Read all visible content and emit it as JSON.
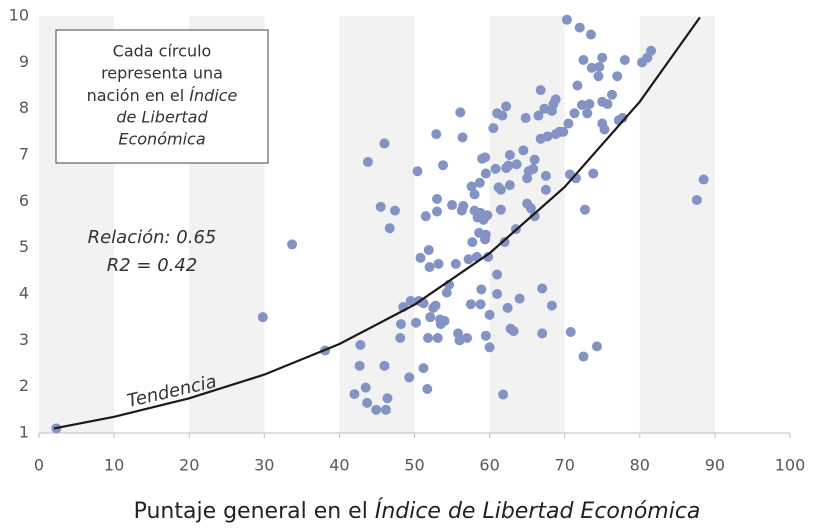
{
  "chart_data": {
    "type": "scatter",
    "xlabel": [
      "Puntaje general en el",
      "Índice de Libertad Económica"
    ],
    "note": [
      "Cada círculo",
      "representa una",
      "nación en el",
      "Índice",
      "de Libertad",
      "Económica"
    ],
    "annotations": [
      "Relación: 0.65",
      "R2 = 0.42"
    ],
    "color": "#8293c4",
    "x": [
      2.3,
      29.8,
      33.7,
      38.1,
      42,
      42.7,
      42.8,
      43.5,
      43.7,
      43.8,
      45.5,
      46,
      44.9,
      46.2,
      46.4,
      46,
      46.7,
      47.4,
      48.1,
      48.2,
      48.5,
      49.3,
      49.5,
      50.2,
      50.4,
      50.6,
      50.8,
      51.2,
      51.2,
      51.5,
      51.7,
      51.8,
      51.9,
      52,
      52.1,
      52.5,
      52.8,
      52.9,
      53,
      53,
      53.1,
      53.2,
      53.4,
      53.5,
      53.8,
      54,
      54.3,
      54.6,
      55,
      55.5,
      55.8,
      56,
      56.1,
      56.3,
      56.4,
      56.5,
      57,
      57.2,
      57.5,
      57.6,
      57.7,
      58,
      58,
      58.3,
      58.4,
      58.6,
      58.7,
      58.8,
      58.8,
      58.9,
      59,
      59.2,
      59.4,
      59.4,
      59.5,
      59.5,
      59.5,
      59.7,
      59.8,
      60,
      60,
      60.5,
      60.8,
      61,
      61,
      61,
      61.2,
      61.5,
      61.5,
      61.7,
      61.8,
      62,
      62.2,
      62.2,
      62.4,
      62.5,
      62.7,
      62.7,
      62.8,
      63.2,
      63.5,
      63.6,
      64,
      64.5,
      64.8,
      65,
      65,
      65.2,
      65.5,
      65.8,
      66,
      66,
      66.5,
      66.8,
      66.8,
      67,
      67,
      67.3,
      67.5,
      67.5,
      67.7,
      68.3,
      68.3,
      68.5,
      68.8,
      68.8,
      69.3,
      69.8,
      70.3,
      70.5,
      70.7,
      70.8,
      71.3,
      71.5,
      71.7,
      72,
      72.3,
      72.5,
      72.5,
      72.7,
      73,
      73.3,
      73.5,
      73.6,
      73.8,
      74.3,
      74.5,
      74.6,
      75,
      75,
      75,
      75.3,
      75.7,
      76.3,
      77,
      77.2,
      77.7,
      78,
      80.3,
      81.5,
      81,
      87.6,
      88.5
    ],
    "values": [
      1.1,
      3.5,
      5.07,
      2.78,
      1.84,
      2.45,
      2.9,
      1.98,
      1.65,
      6.85,
      5.88,
      7.25,
      1.5,
      1.5,
      1.75,
      2.45,
      5.42,
      5.8,
      3.05,
      3.35,
      3.72,
      2.2,
      3.85,
      3.38,
      6.65,
      3.85,
      4.78,
      2.4,
      3.8,
      5.68,
      1.95,
      3.05,
      4.95,
      4.58,
      3.5,
      3.7,
      3.75,
      7.45,
      6.05,
      5.78,
      3.05,
      4.65,
      3.45,
      3.35,
      6.78,
      3.42,
      4.03,
      4.2,
      5.92,
      4.65,
      3.15,
      3,
      7.92,
      5.8,
      7.38,
      5.9,
      3.05,
      4.75,
      3.78,
      6.32,
      5.12,
      5.8,
      6.15,
      4.8,
      5.65,
      5.32,
      6.4,
      5.75,
      3.78,
      4.1,
      6.92,
      5.6,
      5.18,
      6.95,
      6.6,
      5.28,
      3.1,
      5.7,
      4.8,
      2.85,
      3.55,
      7.58,
      6.7,
      7.9,
      4.42,
      4.0,
      6.3,
      5.82,
      6.25,
      7.85,
      1.83,
      5.12,
      8.05,
      6.72,
      3.7,
      6.77,
      7.0,
      6.35,
      3.25,
      3.2,
      5.4,
      6.8,
      3.9,
      7.1,
      7.8,
      6.5,
      5.95,
      6.65,
      5.85,
      6.7,
      5.68,
      6.9,
      7.85,
      8.4,
      7.35,
      4.12,
      3.15,
      8.0,
      6.55,
      6.25,
      7.4,
      3.75,
      7.95,
      8.1,
      8.2,
      7.45,
      7.5,
      7.5,
      9.92,
      7.68,
      6.58,
      3.18,
      7.9,
      6.5,
      8.5,
      9.75,
      8.08,
      2.65,
      9.05,
      5.82,
      7.9,
      8.1,
      9.6,
      8.88,
      6.6,
      2.87,
      8.7,
      8.9,
      9.1,
      8.15,
      7.68,
      7.55,
      8.1,
      8.3,
      8.7,
      7.75,
      7.8,
      9.05,
      9.0,
      9.25,
      9.1,
      6.03,
      6.47
    ],
    "trend": {
      "name": "Tendencia",
      "color": "#1a1a1a",
      "x": [
        2,
        10,
        20,
        30,
        40,
        50,
        60,
        70,
        80,
        88
      ],
      "values": [
        1.1,
        1.35,
        1.75,
        2.26,
        2.92,
        3.77,
        4.88,
        6.31,
        8.15,
        9.97
      ]
    },
    "xlim": [
      0,
      100
    ],
    "xticks": [
      0,
      10,
      20,
      30,
      40,
      50,
      60,
      70,
      80,
      90,
      100
    ],
    "ylim": [
      1,
      10
    ],
    "yticks": [
      1,
      2,
      3,
      4,
      5,
      6,
      7,
      8,
      9,
      10
    ]
  }
}
